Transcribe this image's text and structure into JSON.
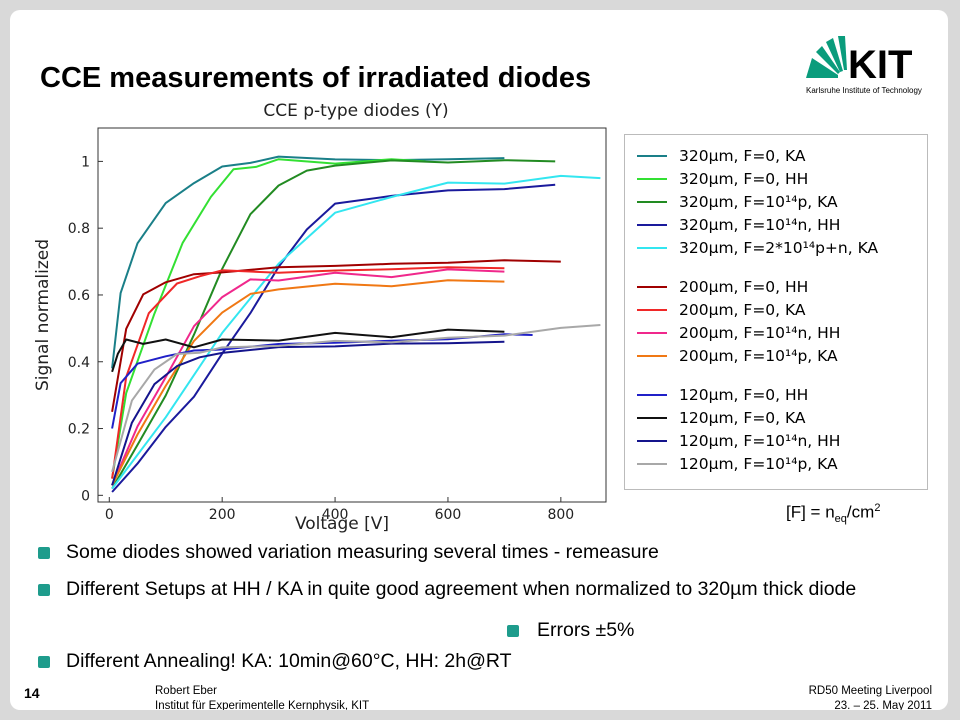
{
  "slide": {
    "title": "CCE measurements of irradiated diodes",
    "logo_text": "KIT",
    "logo_subtitle": "Karlsruhe Institute of Technology",
    "fluence_note": {
      "prefix": "[F] = n",
      "sub": "eq",
      "mid": "/cm",
      "sup": "2"
    },
    "bullets": [
      "Some diodes showed variation measuring several times - remeasure",
      "Different Setups at HH / KA in quite good agreement when normalized to 320µm thick diode",
      "Different Annealing! KA: 10min@60°C, HH: 2h@RT"
    ],
    "errors_bullet": "Errors ±5%",
    "footer": {
      "page_number": "14",
      "author": "Robert Eber",
      "institute": "Institut für Experimentelle Kernphysik, KIT",
      "meeting": "RD50 Meeting Liverpool",
      "date": "23. – 25. May 2011"
    },
    "colors": {
      "bullet": "#1e9c8c",
      "logo_green": "#0a9c7c"
    }
  },
  "chart_data": {
    "type": "line",
    "title": "CCE p-type diodes (Y)",
    "xlabel": "Voltage [V]",
    "ylabel": "Signal normalized",
    "xlim": [
      -20,
      880
    ],
    "ylim": [
      -0.02,
      1.1
    ],
    "xticks": [
      0,
      200,
      400,
      600,
      800
    ],
    "yticks": [
      0,
      0.2,
      0.4,
      0.6,
      0.8,
      1
    ],
    "tick_labels_x": [
      "0",
      "200",
      "400",
      "600",
      "800"
    ],
    "tick_labels_y": [
      "0",
      "0.2",
      "0.4",
      "0.6",
      "0.8",
      "1"
    ],
    "grid": false,
    "legend_position": "right",
    "series": [
      {
        "name": "320µm, F=0, KA",
        "color": "#1a7f88",
        "x": [
          5,
          20,
          50,
          100,
          150,
          200,
          250,
          300,
          400,
          500,
          600,
          700
        ],
        "y": [
          0.38,
          0.6,
          0.76,
          0.87,
          0.94,
          0.98,
          1.0,
          1.01,
          1.01,
          1.0,
          1.01,
          1.01
        ]
      },
      {
        "name": "320µm, F=0, HH",
        "color": "#33e033",
        "x": [
          5,
          30,
          80,
          130,
          180,
          220,
          260,
          300,
          400,
          500,
          560
        ],
        "y": [
          0.05,
          0.3,
          0.55,
          0.75,
          0.9,
          0.97,
          0.99,
          1.0,
          1.0,
          1.0,
          1.0
        ]
      },
      {
        "name": "320µm, F=10¹⁴p, KA",
        "color": "#228b22",
        "x": [
          5,
          50,
          100,
          150,
          200,
          250,
          300,
          350,
          400,
          500,
          600,
          700,
          790
        ],
        "y": [
          0.02,
          0.15,
          0.3,
          0.48,
          0.68,
          0.84,
          0.93,
          0.97,
          0.99,
          1.0,
          1.0,
          1.0,
          1.0
        ]
      },
      {
        "name": "320µm, F=10¹⁴n, HH",
        "color": "#1a1a9c",
        "x": [
          5,
          50,
          100,
          150,
          200,
          250,
          300,
          350,
          400,
          500,
          600,
          700,
          790
        ],
        "y": [
          0.01,
          0.1,
          0.2,
          0.3,
          0.42,
          0.55,
          0.68,
          0.8,
          0.87,
          0.9,
          0.91,
          0.92,
          0.93
        ]
      },
      {
        "name": "320µm, F=2*10¹⁴p+n, KA",
        "color": "#33e6f0",
        "x": [
          5,
          100,
          200,
          300,
          400,
          500,
          600,
          700,
          800,
          870
        ],
        "y": [
          0.02,
          0.24,
          0.48,
          0.7,
          0.84,
          0.9,
          0.93,
          0.94,
          0.95,
          0.95
        ]
      },
      {
        "name": "200µm, F=0, HH",
        "color": "#a00000",
        "x": [
          5,
          30,
          60,
          100,
          150,
          200,
          300,
          400,
          500,
          600,
          700,
          800
        ],
        "y": [
          0.25,
          0.5,
          0.6,
          0.64,
          0.66,
          0.67,
          0.68,
          0.69,
          0.69,
          0.7,
          0.7,
          0.7
        ]
      },
      {
        "name": "200µm, F=0, KA",
        "color": "#f02828",
        "x": [
          5,
          30,
          70,
          120,
          160,
          200,
          300,
          400,
          500,
          600,
          700
        ],
        "y": [
          0.05,
          0.35,
          0.55,
          0.63,
          0.66,
          0.67,
          0.67,
          0.67,
          0.68,
          0.68,
          0.68
        ]
      },
      {
        "name": "200µm, F=10¹⁴n, HH",
        "color": "#f0288c",
        "x": [
          5,
          50,
          100,
          150,
          200,
          250,
          300,
          400,
          500,
          600,
          700
        ],
        "y": [
          0.03,
          0.2,
          0.36,
          0.5,
          0.6,
          0.64,
          0.65,
          0.66,
          0.66,
          0.67,
          0.67
        ]
      },
      {
        "name": "200µm, F=10¹⁴p, KA",
        "color": "#f07814",
        "x": [
          5,
          50,
          100,
          150,
          200,
          250,
          300,
          400,
          500,
          600,
          700
        ],
        "y": [
          0.03,
          0.18,
          0.33,
          0.46,
          0.55,
          0.6,
          0.62,
          0.63,
          0.63,
          0.64,
          0.64
        ]
      },
      {
        "name": "120µm, F=0, HH",
        "color": "#2020c8",
        "x": [
          5,
          20,
          50,
          100,
          150,
          200,
          300,
          400,
          500,
          600,
          700,
          750
        ],
        "y": [
          0.2,
          0.34,
          0.39,
          0.42,
          0.43,
          0.44,
          0.45,
          0.46,
          0.46,
          0.47,
          0.48,
          0.48
        ]
      },
      {
        "name": "120µm, F=0, KA",
        "color": "#111111",
        "x": [
          5,
          15,
          30,
          60,
          100,
          150,
          200,
          300,
          400,
          500,
          600,
          700
        ],
        "y": [
          0.37,
          0.43,
          0.46,
          0.46,
          0.46,
          0.45,
          0.46,
          0.47,
          0.48,
          0.48,
          0.49,
          0.49
        ]
      },
      {
        "name": "120µm, F=10¹⁴n, HH",
        "color": "#14148c",
        "x": [
          5,
          40,
          80,
          120,
          160,
          200,
          300,
          400,
          500,
          600,
          700
        ],
        "y": [
          0.03,
          0.22,
          0.33,
          0.39,
          0.41,
          0.43,
          0.44,
          0.45,
          0.45,
          0.46,
          0.46
        ]
      },
      {
        "name": "120µm, F=10¹⁴p, KA",
        "color": "#a8a8a8",
        "x": [
          5,
          40,
          80,
          120,
          160,
          200,
          300,
          400,
          500,
          600,
          700,
          800,
          870
        ],
        "y": [
          0.07,
          0.28,
          0.38,
          0.42,
          0.43,
          0.44,
          0.45,
          0.46,
          0.46,
          0.47,
          0.48,
          0.5,
          0.51
        ]
      }
    ]
  }
}
